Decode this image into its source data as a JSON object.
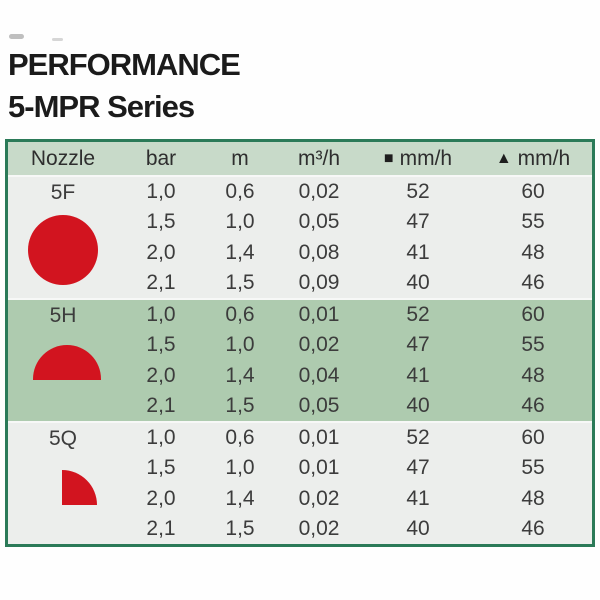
{
  "page": {
    "title_line1": "PERFORMANCE",
    "title_line2": "5-MPR Series"
  },
  "colors": {
    "table_border_green": "#2b7a58",
    "header_bg_green": "#c8dac9",
    "band_bg_green": "#aecbaf",
    "light_row_bg": "#eceeec",
    "nozzle_red": "#d2141f",
    "text": "#3c3c3c"
  },
  "table": {
    "headers": [
      {
        "label": "Nozzle"
      },
      {
        "label": "bar"
      },
      {
        "label": "m"
      },
      {
        "label": "m³/h"
      },
      {
        "label": "mm/h",
        "icon": "■"
      },
      {
        "label": "mm/h",
        "icon": "▲"
      }
    ],
    "sections": [
      {
        "nozzle": "5F",
        "icon": "full-circle",
        "rows": [
          {
            "bar": "1,0",
            "m": "0,6",
            "m3h": "0,02",
            "sq": "52",
            "tri": "60"
          },
          {
            "bar": "1,5",
            "m": "1,0",
            "m3h": "0,05",
            "sq": "47",
            "tri": "55"
          },
          {
            "bar": "2,0",
            "m": "1,4",
            "m3h": "0,08",
            "sq": "41",
            "tri": "48"
          },
          {
            "bar": "2,1",
            "m": "1,5",
            "m3h": "0,09",
            "sq": "40",
            "tri": "46"
          }
        ]
      },
      {
        "nozzle": "5H",
        "icon": "half-circle",
        "rows": [
          {
            "bar": "1,0",
            "m": "0,6",
            "m3h": "0,01",
            "sq": "52",
            "tri": "60"
          },
          {
            "bar": "1,5",
            "m": "1,0",
            "m3h": "0,02",
            "sq": "47",
            "tri": "55"
          },
          {
            "bar": "2,0",
            "m": "1,4",
            "m3h": "0,04",
            "sq": "41",
            "tri": "48"
          },
          {
            "bar": "2,1",
            "m": "1,5",
            "m3h": "0,05",
            "sq": "40",
            "tri": "46"
          }
        ]
      },
      {
        "nozzle": "5Q",
        "icon": "quarter-circle",
        "rows": [
          {
            "bar": "1,0",
            "m": "0,6",
            "m3h": "0,01",
            "sq": "52",
            "tri": "60"
          },
          {
            "bar": "1,5",
            "m": "1,0",
            "m3h": "0,01",
            "sq": "47",
            "tri": "55"
          },
          {
            "bar": "2,0",
            "m": "1,4",
            "m3h": "0,02",
            "sq": "41",
            "tri": "48"
          },
          {
            "bar": "2,1",
            "m": "1,5",
            "m3h": "0,02",
            "sq": "40",
            "tri": "46"
          }
        ]
      }
    ]
  }
}
